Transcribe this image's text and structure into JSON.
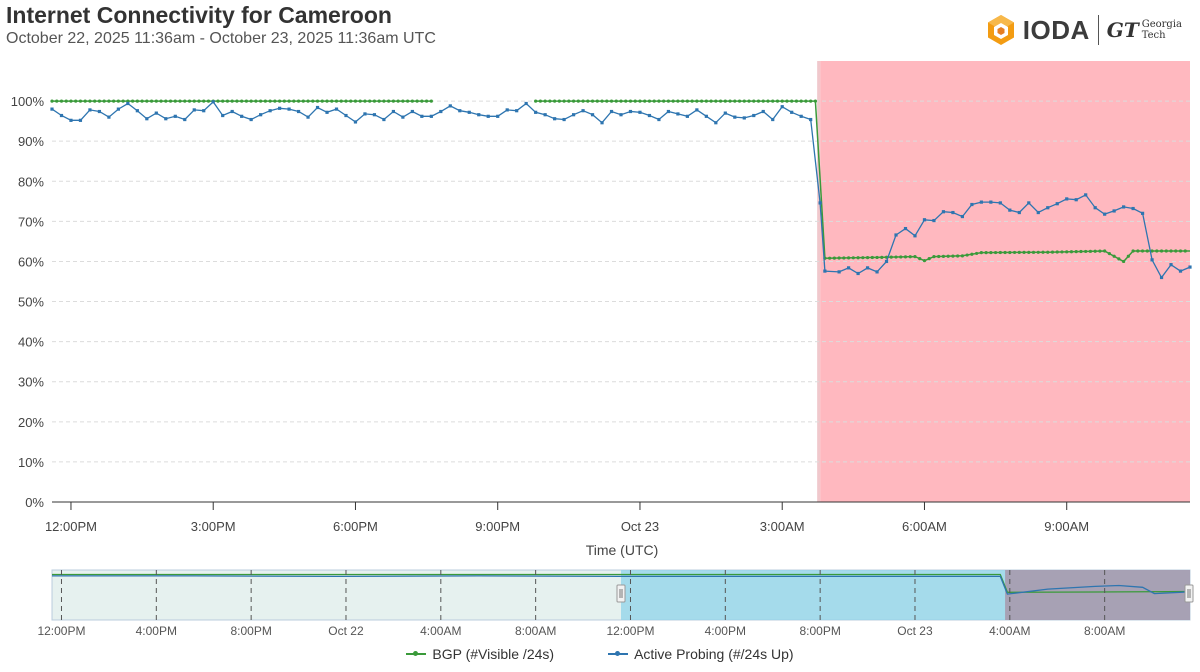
{
  "header": {
    "title": "Internet Connectivity for Cameroon",
    "subtitle": "October 22, 2025 11:36am - October 23, 2025 11:36am UTC"
  },
  "logo": {
    "brand": "IODA",
    "partner_mark": "GT",
    "partner_line1": "Georgia",
    "partner_line2": "Tech"
  },
  "colors": {
    "bgp": "#3a9a3a",
    "probing": "#2e75b0",
    "outage": "#ff0018"
  },
  "chart_data": [
    {
      "type": "line",
      "title": "Internet Connectivity for Cameroon",
      "xlabel": "Time (UTC)",
      "ylabel": "",
      "x_unit": "hours since 11:36am Oct 22",
      "xlim": [
        0,
        24
      ],
      "ylim": [
        0,
        110
      ],
      "yticks": [
        0,
        10,
        20,
        30,
        40,
        50,
        60,
        70,
        80,
        90,
        100
      ],
      "ytick_labels": [
        "0%",
        "10%",
        "20%",
        "30%",
        "40%",
        "50%",
        "60%",
        "70%",
        "80%",
        "90%",
        "100%"
      ],
      "xticks": [
        0.4,
        3.4,
        6.4,
        9.4,
        12.4,
        15.4,
        18.4,
        21.4
      ],
      "xtick_labels": [
        "12:00PM",
        "3:00PM",
        "6:00PM",
        "9:00PM",
        "Oct 23",
        "3:00AM",
        "6:00AM",
        "9:00AM"
      ],
      "grid": true,
      "outage_region": [
        16.2,
        24
      ],
      "series": [
        {
          "name": "BGP (#Visible /24s)",
          "segments": [
            {
              "x_start": 0,
              "x_end": 8.0,
              "y": 100
            },
            {
              "x_start": 10.2,
              "x_end": 16.1,
              "y": 100
            },
            {
              "points": [
                [
                  16.1,
                  100
                ],
                [
                  16.3,
                  60.8
                ],
                [
                  17.4,
                  61
                ],
                [
                  18.2,
                  61.2
                ],
                [
                  18.4,
                  60.2
                ],
                [
                  18.6,
                  61.2
                ],
                [
                  19.2,
                  61.4
                ],
                [
                  19.6,
                  62.2
                ],
                [
                  21.0,
                  62.3
                ],
                [
                  22.2,
                  62.6
                ],
                [
                  22.6,
                  60
                ],
                [
                  22.8,
                  62.6
                ],
                [
                  24,
                  62.6
                ]
              ]
            }
          ]
        },
        {
          "name": "Active Probing (#/24s Up)",
          "points": [
            [
              0,
              98
            ],
            [
              0.2,
              96.4
            ],
            [
              0.4,
              95.2
            ],
            [
              0.6,
              95.2
            ],
            [
              0.8,
              97.8
            ],
            [
              1.0,
              97.4
            ],
            [
              1.2,
              96
            ],
            [
              1.4,
              98
            ],
            [
              1.6,
              99.4
            ],
            [
              1.8,
              97.6
            ],
            [
              2.0,
              95.6
            ],
            [
              2.2,
              97
            ],
            [
              2.4,
              95.6
            ],
            [
              2.6,
              96.2
            ],
            [
              2.8,
              95.4
            ],
            [
              3.0,
              97.8
            ],
            [
              3.2,
              97.6
            ],
            [
              3.4,
              99.8
            ],
            [
              3.6,
              96.4
            ],
            [
              3.8,
              97.4
            ],
            [
              4.0,
              96.2
            ],
            [
              4.2,
              95.4
            ],
            [
              4.4,
              96.6
            ],
            [
              4.6,
              97.6
            ],
            [
              4.8,
              98.2
            ],
            [
              5.0,
              98
            ],
            [
              5.2,
              97.4
            ],
            [
              5.4,
              96
            ],
            [
              5.6,
              98.4
            ],
            [
              5.8,
              97.2
            ],
            [
              6.0,
              98
            ],
            [
              6.2,
              96.4
            ],
            [
              6.4,
              94.8
            ],
            [
              6.6,
              96.8
            ],
            [
              6.8,
              96.6
            ],
            [
              7.0,
              95.4
            ],
            [
              7.2,
              97.4
            ],
            [
              7.4,
              96
            ],
            [
              7.6,
              97.4
            ],
            [
              7.8,
              96.2
            ],
            [
              8.0,
              96.2
            ],
            [
              8.2,
              97.4
            ],
            [
              8.4,
              98.8
            ],
            [
              8.6,
              97.6
            ],
            [
              8.8,
              97.2
            ],
            [
              9.0,
              96.6
            ],
            [
              9.2,
              96.2
            ],
            [
              9.4,
              96.2
            ],
            [
              9.6,
              97.8
            ],
            [
              9.8,
              97.6
            ],
            [
              10.0,
              99.4
            ],
            [
              10.2,
              97.2
            ],
            [
              10.4,
              96.6
            ],
            [
              10.6,
              95.6
            ],
            [
              10.8,
              95.4
            ],
            [
              11.0,
              96.6
            ],
            [
              11.2,
              97.6
            ],
            [
              11.4,
              96.6
            ],
            [
              11.6,
              94.6
            ],
            [
              11.8,
              97.4
            ],
            [
              12.0,
              96.6
            ],
            [
              12.2,
              97.4
            ],
            [
              12.4,
              97.2
            ],
            [
              12.6,
              96.4
            ],
            [
              12.8,
              95.4
            ],
            [
              13.0,
              97.4
            ],
            [
              13.2,
              96.8
            ],
            [
              13.4,
              96.2
            ],
            [
              13.6,
              97.8
            ],
            [
              13.8,
              96.2
            ],
            [
              14.0,
              94.6
            ],
            [
              14.2,
              97
            ],
            [
              14.4,
              96
            ],
            [
              14.6,
              95.8
            ],
            [
              14.8,
              96.4
            ],
            [
              15.0,
              97.4
            ],
            [
              15.2,
              95.4
            ],
            [
              15.4,
              98.6
            ],
            [
              15.6,
              97.2
            ],
            [
              15.8,
              96.2
            ],
            [
              16.0,
              95.4
            ],
            [
              16.2,
              74.6
            ],
            [
              16.3,
              57.6
            ],
            [
              16.6,
              57.4
            ],
            [
              16.8,
              58.4
            ],
            [
              17.0,
              57
            ],
            [
              17.2,
              58.4
            ],
            [
              17.4,
              57.4
            ],
            [
              17.6,
              60
            ],
            [
              17.8,
              66.6
            ],
            [
              18.0,
              68.2
            ],
            [
              18.2,
              66.4
            ],
            [
              18.4,
              70.4
            ],
            [
              18.6,
              70.2
            ],
            [
              18.8,
              72.4
            ],
            [
              19.0,
              72.2
            ],
            [
              19.2,
              71.2
            ],
            [
              19.4,
              74.2
            ],
            [
              19.6,
              74.8
            ],
            [
              19.8,
              74.8
            ],
            [
              20.0,
              74.6
            ],
            [
              20.2,
              72.8
            ],
            [
              20.4,
              72.2
            ],
            [
              20.6,
              74.6
            ],
            [
              20.8,
              72.2
            ],
            [
              21.0,
              73.4
            ],
            [
              21.2,
              74.4
            ],
            [
              21.4,
              75.6
            ],
            [
              21.6,
              75.4
            ],
            [
              21.8,
              76.6
            ],
            [
              22.0,
              73.4
            ],
            [
              22.2,
              71.8
            ],
            [
              22.4,
              72.6
            ],
            [
              22.6,
              73.6
            ],
            [
              22.8,
              73.2
            ],
            [
              23.0,
              72
            ],
            [
              23.2,
              60.4
            ],
            [
              23.4,
              56
            ],
            [
              23.6,
              59.2
            ],
            [
              23.8,
              57.6
            ],
            [
              24.0,
              58.6
            ]
          ]
        }
      ]
    },
    {
      "type": "area",
      "title": "",
      "x_unit": "hours since 11:36am Oct 21",
      "xlim": [
        0,
        48
      ],
      "ylim": [
        0,
        110
      ],
      "xticks": [
        0.4,
        4.4,
        8.4,
        12.4,
        16.4,
        20.4,
        24.4,
        28.4,
        32.4,
        36.4,
        40.4,
        44.4
      ],
      "xtick_labels": [
        "12:00PM",
        "4:00PM",
        "8:00PM",
        "Oct 22",
        "4:00AM",
        "8:00AM",
        "12:00PM",
        "4:00PM",
        "8:00PM",
        "Oct 23",
        "4:00AM",
        "8:00AM"
      ],
      "selection_range": [
        24,
        48
      ],
      "outage_region": [
        40.2,
        48
      ],
      "series": [
        {
          "name": "BGP (#Visible /24s)",
          "points": [
            [
              0,
              100
            ],
            [
              40.0,
              100
            ],
            [
              40.3,
              61
            ],
            [
              44,
              61.5
            ],
            [
              48,
              62.6
            ]
          ]
        },
        {
          "name": "Active Probing (#/24s Up)",
          "points": [
            [
              0,
              97
            ],
            [
              6,
              97
            ],
            [
              12,
              96
            ],
            [
              18,
              97
            ],
            [
              24,
              96
            ],
            [
              30,
              96
            ],
            [
              36,
              96
            ],
            [
              40.0,
              96
            ],
            [
              40.3,
              57
            ],
            [
              42,
              68
            ],
            [
              44,
              74
            ],
            [
              45,
              76
            ],
            [
              46,
              72
            ],
            [
              46.5,
              58
            ],
            [
              48,
              62
            ]
          ]
        }
      ]
    }
  ],
  "legend": [
    {
      "label": "BGP (#Visible /24s)",
      "color": "#3a9a3a"
    },
    {
      "label": "Active Probing (#/24s Up)",
      "color": "#2e75b0"
    }
  ]
}
